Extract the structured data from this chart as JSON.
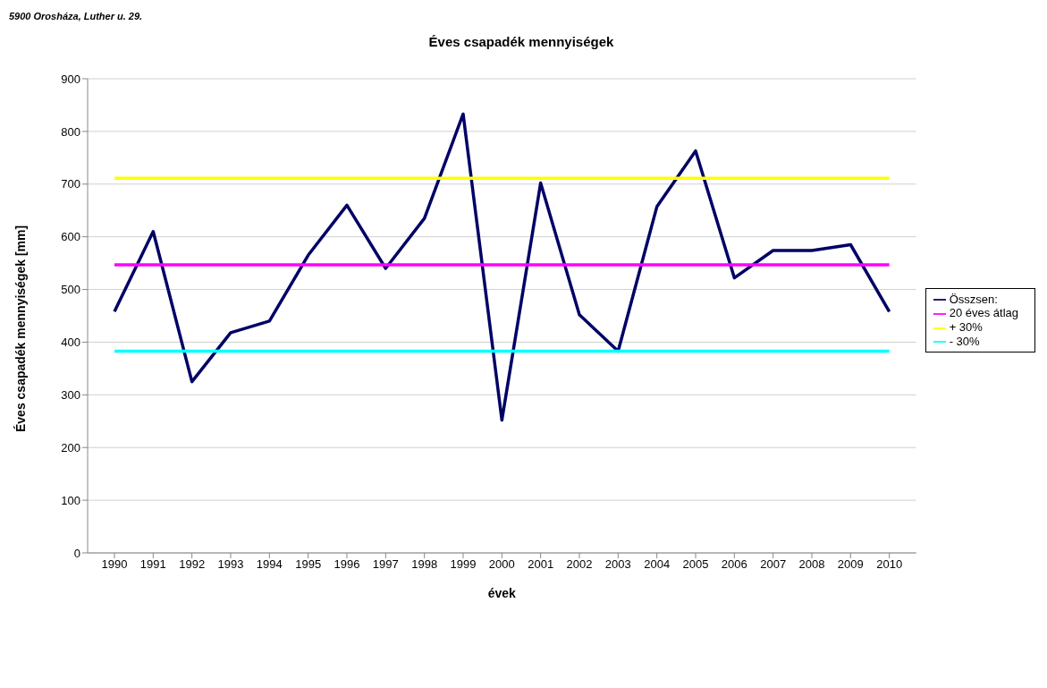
{
  "chart_data": {
    "type": "line",
    "title": "Éves csapadék mennyiségek",
    "xlabel": "évek",
    "ylabel": "Éves csapadék mennyiségek [mm]",
    "annotations": [
      "5900 Orosháza, Luther u. 29."
    ],
    "categories": [
      "1990",
      "1991",
      "1992",
      "1993",
      "1994",
      "1995",
      "1996",
      "1997",
      "1998",
      "1999",
      "2000",
      "2001",
      "2002",
      "2003",
      "2004",
      "2005",
      "2006",
      "2007",
      "2008",
      "2009",
      "2010"
    ],
    "series": [
      {
        "name": "Összsen:",
        "color": "#000066",
        "values": [
          458,
          610,
          325,
          418,
          440,
          565,
          660,
          540,
          635,
          833,
          252,
          702,
          452,
          383,
          657,
          763,
          522,
          574,
          574,
          585,
          458
        ]
      },
      {
        "name": "20 éves átlag",
        "color": "#ff00ff",
        "values": [
          547,
          547,
          547,
          547,
          547,
          547,
          547,
          547,
          547,
          547,
          547,
          547,
          547,
          547,
          547,
          547,
          547,
          547,
          547,
          547,
          547
        ]
      },
      {
        "name": "+ 30%",
        "color": "#ffff00",
        "values": [
          711,
          711,
          711,
          711,
          711,
          711,
          711,
          711,
          711,
          711,
          711,
          711,
          711,
          711,
          711,
          711,
          711,
          711,
          711,
          711,
          711
        ]
      },
      {
        "name": "- 30%",
        "color": "#00ffff",
        "values": [
          383,
          383,
          383,
          383,
          383,
          383,
          383,
          383,
          383,
          383,
          383,
          383,
          383,
          383,
          383,
          383,
          383,
          383,
          383,
          383,
          383
        ]
      }
    ],
    "ylim": [
      0,
      900
    ],
    "yticks": [
      0,
      100,
      200,
      300,
      400,
      500,
      600,
      700,
      800,
      900
    ],
    "grid": "y",
    "legend": "right",
    "marker": "none",
    "line_style": "solid"
  }
}
